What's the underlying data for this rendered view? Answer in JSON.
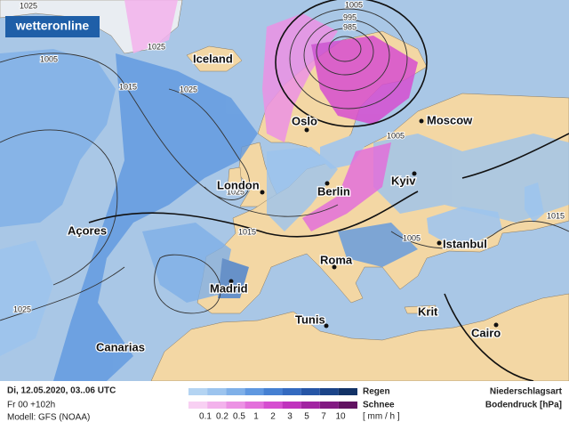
{
  "logo": "wetteronline",
  "cities": [
    "Iceland",
    "Oslo",
    "Moscow",
    "London",
    "Berlin",
    "Kyiv",
    "Açores",
    "Istanbul",
    "Roma",
    "Madrid",
    "Tunis",
    "Krit",
    "Cairo",
    "Canarias"
  ],
  "isobar_labels": [
    1025,
    1005,
    995,
    985,
    1025,
    1005,
    1015,
    1025,
    1005,
    1025,
    1015,
    1005,
    1015,
    1025
  ],
  "footer": {
    "date": "Di, 12.05.2020, 03..06 UTC",
    "run": "Fr 00 +102h",
    "model": "Modell: GFS (NOAA)",
    "legend": {
      "rain_label": "Regen",
      "snow_label": "Schnee",
      "unit": "[ mm / h ]",
      "scale": [
        0.1,
        0.2,
        0.5,
        1,
        2,
        3,
        5,
        7,
        10
      ],
      "rain_colors": [
        "#b4d4f2",
        "#9cc4ee",
        "#7fb0e8",
        "#5f98e0",
        "#4580d2",
        "#336ac0",
        "#2656a6",
        "#1b4488",
        "#123266"
      ],
      "snow_colors": [
        "#f8d0f3",
        "#f3b2ec",
        "#ec92e4",
        "#e370db",
        "#d64ed0",
        "#c032bd",
        "#a224a2",
        "#821a82",
        "#621262"
      ]
    },
    "type_title": "Niederschlagsart",
    "pressure_title": "Bodendruck [hPa]"
  }
}
